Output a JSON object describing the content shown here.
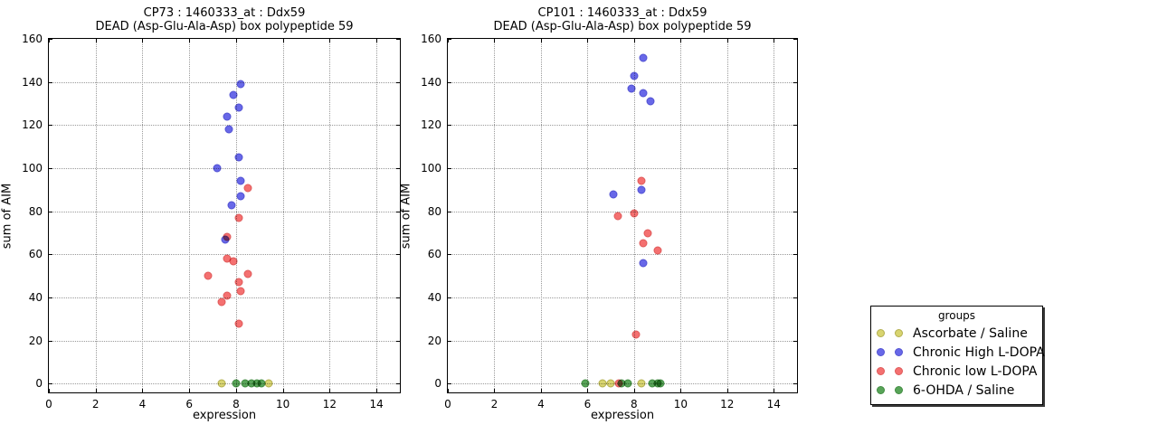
{
  "colors": {
    "ascorbate": {
      "fill": "#d8d470",
      "edge": "#b2ae4e"
    },
    "chronic_high": {
      "fill": "#6868e8",
      "edge": "#5252d2"
    },
    "chronic_low": {
      "fill": "#f47070",
      "edge": "#df5a5a"
    },
    "ohda": {
      "fill": "#58a458",
      "edge": "#418c41"
    },
    "grid": "#9a9a9a",
    "axis": "#000000",
    "background": "#ffffff"
  },
  "legend": {
    "title": "groups",
    "entries": [
      {
        "label": "Ascorbate / Saline",
        "color_key": "ascorbate"
      },
      {
        "label": "Chronic High L-DOPA",
        "color_key": "chronic_high"
      },
      {
        "label": "Chronic low L-DOPA",
        "color_key": "chronic_low"
      },
      {
        "label": "6-OHDA / Saline",
        "color_key": "ohda"
      }
    ]
  },
  "chart_data": [
    {
      "type": "scatter",
      "title_line1": "CP73 : 1460333_at : Ddx59",
      "title_line2": "DEAD (Asp-Glu-Ala-Asp) box polypeptide 59",
      "xlabel": "expression",
      "ylabel": "sum of AIM",
      "xlim": [
        0,
        15
      ],
      "ylim": [
        -4,
        160
      ],
      "xticks": [
        0,
        2,
        4,
        6,
        8,
        10,
        12,
        14
      ],
      "yticks": [
        0,
        20,
        40,
        60,
        80,
        100,
        120,
        140,
        160
      ],
      "grid": true,
      "legend_position": "outside-right",
      "series": [
        {
          "name": "Ascorbate / Saline",
          "color_key": "ascorbate",
          "points": [
            [
              7.4,
              0
            ],
            [
              9.4,
              0
            ]
          ]
        },
        {
          "name": "Chronic High L-DOPA",
          "color_key": "chronic_high",
          "points": [
            [
              8.2,
              139
            ],
            [
              7.9,
              134
            ],
            [
              8.1,
              128
            ],
            [
              7.6,
              124
            ],
            [
              7.7,
              118
            ],
            [
              8.1,
              105
            ],
            [
              7.2,
              100
            ],
            [
              8.2,
              94
            ],
            [
              8.2,
              87
            ],
            [
              7.8,
              83
            ],
            [
              7.55,
              67
            ]
          ]
        },
        {
          "name": "Chronic low L-DOPA",
          "color_key": "chronic_low",
          "points": [
            [
              8.5,
              91
            ],
            [
              8.1,
              77
            ],
            [
              7.6,
              68
            ],
            [
              7.6,
              58
            ],
            [
              7.9,
              57
            ],
            [
              6.8,
              50
            ],
            [
              8.5,
              51
            ],
            [
              8.1,
              47
            ],
            [
              8.2,
              43
            ],
            [
              7.6,
              41
            ],
            [
              7.4,
              38
            ],
            [
              8.1,
              28
            ]
          ]
        },
        {
          "name": "6-OHDA / Saline",
          "color_key": "ohda",
          "points": [
            [
              8.0,
              0
            ],
            [
              8.4,
              0
            ],
            [
              8.65,
              0
            ],
            [
              8.9,
              0
            ],
            [
              9.1,
              0
            ]
          ]
        }
      ]
    },
    {
      "type": "scatter",
      "title_line1": "CP101 : 1460333_at : Ddx59",
      "title_line2": "DEAD (Asp-Glu-Ala-Asp) box polypeptide 59",
      "xlabel": "expression",
      "ylabel": "sum of AIM",
      "xlim": [
        0,
        15
      ],
      "ylim": [
        -4,
        160
      ],
      "xticks": [
        0,
        2,
        4,
        6,
        8,
        10,
        12,
        14
      ],
      "yticks": [
        0,
        20,
        40,
        60,
        80,
        100,
        120,
        140,
        160
      ],
      "grid": true,
      "legend_position": "outside-right",
      "series": [
        {
          "name": "Ascorbate / Saline",
          "color_key": "ascorbate",
          "points": [
            [
              6.65,
              0
            ],
            [
              7.0,
              0
            ],
            [
              8.3,
              0
            ]
          ]
        },
        {
          "name": "Chronic High L-DOPA",
          "color_key": "chronic_high",
          "points": [
            [
              8.4,
              151
            ],
            [
              8.0,
              143
            ],
            [
              7.9,
              137
            ],
            [
              8.4,
              135
            ],
            [
              8.7,
              131
            ],
            [
              8.3,
              90
            ],
            [
              7.1,
              88
            ],
            [
              8.4,
              56
            ]
          ]
        },
        {
          "name": "Chronic low L-DOPA",
          "color_key": "chronic_low",
          "points": [
            [
              8.3,
              94
            ],
            [
              8.0,
              79
            ],
            [
              7.3,
              78
            ],
            [
              8.6,
              70
            ],
            [
              8.4,
              65
            ],
            [
              9.0,
              62
            ],
            [
              8.1,
              23
            ],
            [
              7.35,
              0
            ]
          ]
        },
        {
          "name": "6-OHDA / Saline",
          "color_key": "ohda",
          "points": [
            [
              5.9,
              0
            ],
            [
              7.45,
              0
            ],
            [
              7.75,
              0
            ],
            [
              8.8,
              0
            ],
            [
              9.0,
              0
            ],
            [
              9.15,
              0
            ]
          ]
        }
      ]
    }
  ]
}
